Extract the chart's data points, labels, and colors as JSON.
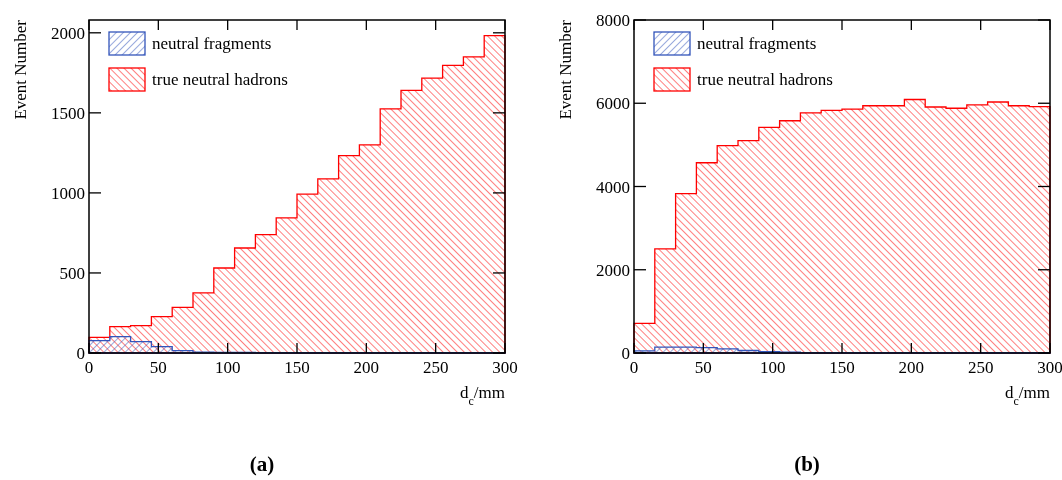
{
  "chart_data": [
    {
      "type": "histogram",
      "xlabel": "d$_{c}$/mm",
      "ylabel": "Event Number",
      "annotations": [
        "(a)"
      ],
      "legend": "top left",
      "bins": [
        0,
        15,
        30,
        45,
        60,
        75,
        90,
        105,
        120,
        135,
        150,
        165,
        180,
        195,
        210,
        225,
        240,
        255,
        270,
        285,
        300
      ],
      "xlim": [
        0,
        300
      ],
      "xticks": [
        0,
        50,
        100,
        150,
        200,
        250,
        300
      ],
      "ylim": [
        0,
        2080
      ],
      "yticks": [
        0,
        500,
        1000,
        1500,
        2000
      ],
      "series": [
        {
          "name": "true neutral hadrons",
          "color": "#ff0000",
          "values": [
            98,
            165,
            171,
            227,
            285,
            375,
            531,
            656,
            740,
            844,
            992,
            1088,
            1233,
            1300,
            1525,
            1640,
            1717,
            1796,
            1850,
            1983
          ]
        },
        {
          "name": "neutral fragments",
          "color": "#3355bb",
          "values": [
            77,
            102,
            71,
            40,
            15,
            6,
            3,
            3,
            2,
            2,
            2,
            2,
            2,
            2,
            2,
            2,
            2,
            2,
            2,
            2
          ]
        }
      ]
    },
    {
      "type": "histogram",
      "xlabel": "d$_{c}$/mm",
      "ylabel": "Event Number",
      "annotations": [
        "(b)"
      ],
      "legend": "top left",
      "bins": [
        0,
        15,
        30,
        45,
        60,
        75,
        90,
        105,
        120,
        135,
        150,
        165,
        180,
        195,
        210,
        225,
        240,
        255,
        270,
        285,
        300
      ],
      "xlim": [
        0,
        300
      ],
      "xticks": [
        0,
        50,
        100,
        150,
        200,
        250,
        300
      ],
      "ylim": [
        0,
        8000
      ],
      "yticks": [
        0,
        2000,
        4000,
        6000,
        8000
      ],
      "series": [
        {
          "name": "true neutral hadrons",
          "color": "#ff0000",
          "values": [
            710,
            2500,
            3830,
            4570,
            4980,
            5100,
            5420,
            5580,
            5770,
            5830,
            5860,
            5940,
            5940,
            6090,
            5910,
            5880,
            5960,
            6030,
            5940,
            5920
          ]
        },
        {
          "name": "neutral fragments",
          "color": "#3355bb",
          "values": [
            50,
            140,
            140,
            130,
            100,
            60,
            30,
            20,
            10,
            10,
            10,
            10,
            10,
            10,
            10,
            10,
            10,
            10,
            10,
            10
          ]
        }
      ]
    }
  ]
}
